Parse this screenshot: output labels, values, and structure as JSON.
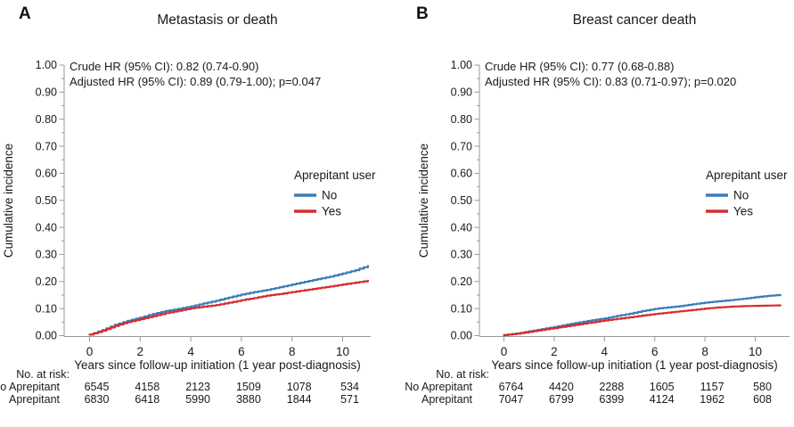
{
  "figure": {
    "background": "#ffffff",
    "axis_color": "#999999",
    "text_color": "#1a1a1a",
    "legend": {
      "title": "Aprepitant user",
      "entries": [
        {
          "label": "No",
          "color": "#3a7cb8"
        },
        {
          "label": "Yes",
          "color": "#d62b2e"
        }
      ]
    }
  },
  "chart_data": [
    {
      "type": "line",
      "panel_letter": "A",
      "title": "Metastasis or death",
      "annotation_lines": [
        "Crude HR (95% CI): 0.82 (0.74-0.90)",
        "Adjusted HR (95% CI): 0.89 (0.79-1.00); p=0.047"
      ],
      "xlabel": "Years since follow-up initiation (1 year post-diagnosis)",
      "ylabel": "Cumulative incidence",
      "xlim": [
        0,
        11.3
      ],
      "ylim": [
        0,
        1.0
      ],
      "x_ticks": [
        0,
        2,
        4,
        6,
        8,
        10
      ],
      "y_tick_labels": [
        "0.00",
        "0.10",
        "0.20",
        "0.30",
        "0.40",
        "0.50",
        "0.60",
        "0.70",
        "0.80",
        "0.90",
        "1.00"
      ],
      "y_minor_tick_step": 0.05,
      "grid": false,
      "legend_position": "inside-right",
      "series": [
        {
          "name": "No",
          "color": "#3a7cb8",
          "x": [
            0,
            0.5,
            1,
            1.5,
            2,
            2.5,
            3,
            3.5,
            4,
            4.5,
            5,
            5.5,
            6,
            6.5,
            7,
            7.5,
            8,
            8.5,
            9,
            9.5,
            10,
            10.5,
            11
          ],
          "y": [
            0.004,
            0.02,
            0.04,
            0.055,
            0.067,
            0.08,
            0.091,
            0.099,
            0.108,
            0.119,
            0.129,
            0.141,
            0.152,
            0.161,
            0.169,
            0.179,
            0.189,
            0.199,
            0.209,
            0.218,
            0.23,
            0.242,
            0.258
          ]
        },
        {
          "name": "Yes",
          "color": "#d62b2e",
          "x": [
            0,
            0.5,
            1,
            1.5,
            2,
            2.5,
            3,
            3.5,
            4,
            4.5,
            5,
            5.5,
            6,
            6.5,
            7,
            7.5,
            8,
            8.5,
            9,
            9.5,
            10,
            10.5,
            11
          ],
          "y": [
            0.004,
            0.018,
            0.036,
            0.05,
            0.061,
            0.072,
            0.083,
            0.092,
            0.101,
            0.107,
            0.113,
            0.122,
            0.131,
            0.139,
            0.148,
            0.154,
            0.161,
            0.168,
            0.175,
            0.182,
            0.189,
            0.196,
            0.203
          ]
        }
      ],
      "at_risk": {
        "header": "No. at risk:",
        "rows": [
          {
            "label": "No Aprepitant",
            "values": [
              "6545",
              "4158",
              "2123",
              "1509",
              "1078",
              "534"
            ]
          },
          {
            "label": "Aprepitant",
            "values": [
              "6830",
              "6418",
              "5990",
              "3880",
              "1844",
              "571"
            ]
          }
        ]
      }
    },
    {
      "type": "line",
      "panel_letter": "B",
      "title": "Breast cancer death",
      "annotation_lines": [
        "Crude HR (95% CI): 0.77 (0.68-0.88)",
        "Adjusted HR (95% CI): 0.83 (0.71-0.97); p=0.020"
      ],
      "xlabel": "Years since follow-up initiation (1 year post-diagnosis)",
      "ylabel": "Cumulative incidence",
      "xlim": [
        0,
        11.4
      ],
      "ylim": [
        0,
        1.0
      ],
      "x_ticks": [
        0,
        2,
        4,
        6,
        8,
        10
      ],
      "y_tick_labels": [
        "0.00",
        "0.10",
        "0.20",
        "0.30",
        "0.40",
        "0.50",
        "0.60",
        "0.70",
        "0.80",
        "0.90",
        "1.00"
      ],
      "y_minor_tick_step": 0.05,
      "grid": false,
      "legend_position": "inside-right",
      "series": [
        {
          "name": "No",
          "color": "#3a7cb8",
          "x": [
            0,
            0.5,
            1,
            1.5,
            2,
            2.5,
            3,
            3.5,
            4,
            4.5,
            5,
            5.5,
            6,
            6.5,
            7,
            7.5,
            8,
            8.5,
            9,
            9.5,
            10,
            10.5,
            11
          ],
          "y": [
            0.002,
            0.008,
            0.016,
            0.024,
            0.032,
            0.041,
            0.049,
            0.057,
            0.064,
            0.073,
            0.081,
            0.091,
            0.099,
            0.104,
            0.109,
            0.116,
            0.122,
            0.127,
            0.131,
            0.136,
            0.142,
            0.147,
            0.151
          ]
        },
        {
          "name": "Yes",
          "color": "#d62b2e",
          "x": [
            0,
            0.5,
            1,
            1.5,
            2,
            2.5,
            3,
            3.5,
            4,
            4.5,
            5,
            5.5,
            6,
            6.5,
            7,
            7.5,
            8,
            8.5,
            9,
            9.5,
            10,
            10.5,
            11
          ],
          "y": [
            0.002,
            0.007,
            0.014,
            0.021,
            0.028,
            0.035,
            0.042,
            0.049,
            0.056,
            0.062,
            0.068,
            0.074,
            0.08,
            0.085,
            0.09,
            0.095,
            0.1,
            0.104,
            0.107,
            0.109,
            0.11,
            0.111,
            0.112
          ]
        }
      ],
      "at_risk": {
        "header": "No. at risk:",
        "rows": [
          {
            "label": "No Aprepitant",
            "values": [
              "6764",
              "4420",
              "2288",
              "1605",
              "1157",
              "580"
            ]
          },
          {
            "label": "Aprepitant",
            "values": [
              "7047",
              "6799",
              "6399",
              "4124",
              "1962",
              "608"
            ]
          }
        ]
      }
    }
  ]
}
